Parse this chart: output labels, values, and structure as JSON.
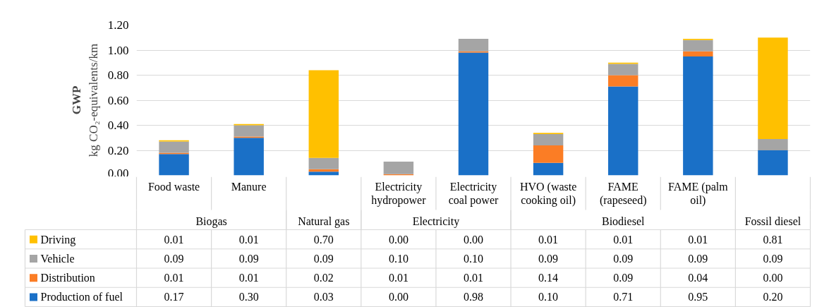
{
  "chart_data": {
    "type": "bar",
    "stacked": true,
    "title": "GWP",
    "ylabel": "kg CO₂-equivalents/km",
    "categories": [
      "Food waste",
      "Manure",
      null,
      "Electricity hydropower",
      "Electricity coal power",
      "HVO (waste cooking oil)",
      "FAME (rapeseed)",
      "FAME (palm oil)",
      null
    ],
    "annotations": [
      "Biogas",
      "Natural gas",
      "Electricity",
      "Biodiesel",
      "Fossil diesel"
    ],
    "series": [
      {
        "name": "Production of fuel",
        "color": "#1a70c7",
        "values": [
          0.17,
          0.3,
          0.03,
          0.0,
          0.98,
          0.1,
          0.71,
          0.95,
          0.2
        ],
        "value_labels": [
          "0.17",
          "0.30",
          "0.03",
          "0.00",
          "0.98",
          "0.10",
          "0.71",
          "0.95",
          "0.20"
        ]
      },
      {
        "name": "Distribution",
        "color": "#fb7d25",
        "values": [
          0.01,
          0.01,
          0.02,
          0.01,
          0.01,
          0.14,
          0.09,
          0.04,
          0.0
        ],
        "value_labels": [
          "0.01",
          "0.01",
          "0.02",
          "0.01",
          "0.01",
          "0.14",
          "0.09",
          "0.04",
          "0.00"
        ]
      },
      {
        "name": "Vehicle",
        "color": "#a5a5a5",
        "values": [
          0.09,
          0.09,
          0.09,
          0.1,
          0.1,
          0.09,
          0.09,
          0.09,
          0.09
        ],
        "value_labels": [
          "0.09",
          "0.09",
          "0.09",
          "0.10",
          "0.10",
          "0.09",
          "0.09",
          "0.09",
          "0.09"
        ]
      },
      {
        "name": "Driving",
        "color": "#ffc000",
        "values": [
          0.01,
          0.01,
          0.7,
          0.0,
          0.0,
          0.01,
          0.01,
          0.01,
          0.81
        ],
        "value_labels": [
          "0.01",
          "0.01",
          "0.70",
          "0.00",
          "0.00",
          "0.01",
          "0.01",
          "0.01",
          "0.81"
        ]
      }
    ],
    "ylim": [
      0,
      1.2
    ],
    "yticks": [
      {
        "value": 0,
        "label": "0.00"
      },
      {
        "value": 0.2,
        "label": "0.20"
      },
      {
        "value": 0.4,
        "label": "0.40"
      },
      {
        "value": 0.6,
        "label": "0.60"
      },
      {
        "value": 0.8,
        "label": "0.80"
      },
      {
        "value": 1.0,
        "label": "1.00"
      },
      {
        "value": 1.2,
        "label": "1.20"
      }
    ],
    "grid": "y",
    "legend": "bottom left"
  }
}
